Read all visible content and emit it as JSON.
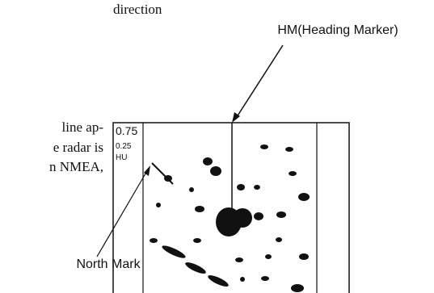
{
  "body_text": [
    "direction",
    "line ap-",
    "e radar is",
    "n NMEA,"
  ],
  "labels": {
    "heading_marker": "HM(Heading Marker)",
    "north_mark": "North Mark"
  },
  "screen": {
    "range": "0.75",
    "rings": "0.25",
    "mode": "HU"
  }
}
